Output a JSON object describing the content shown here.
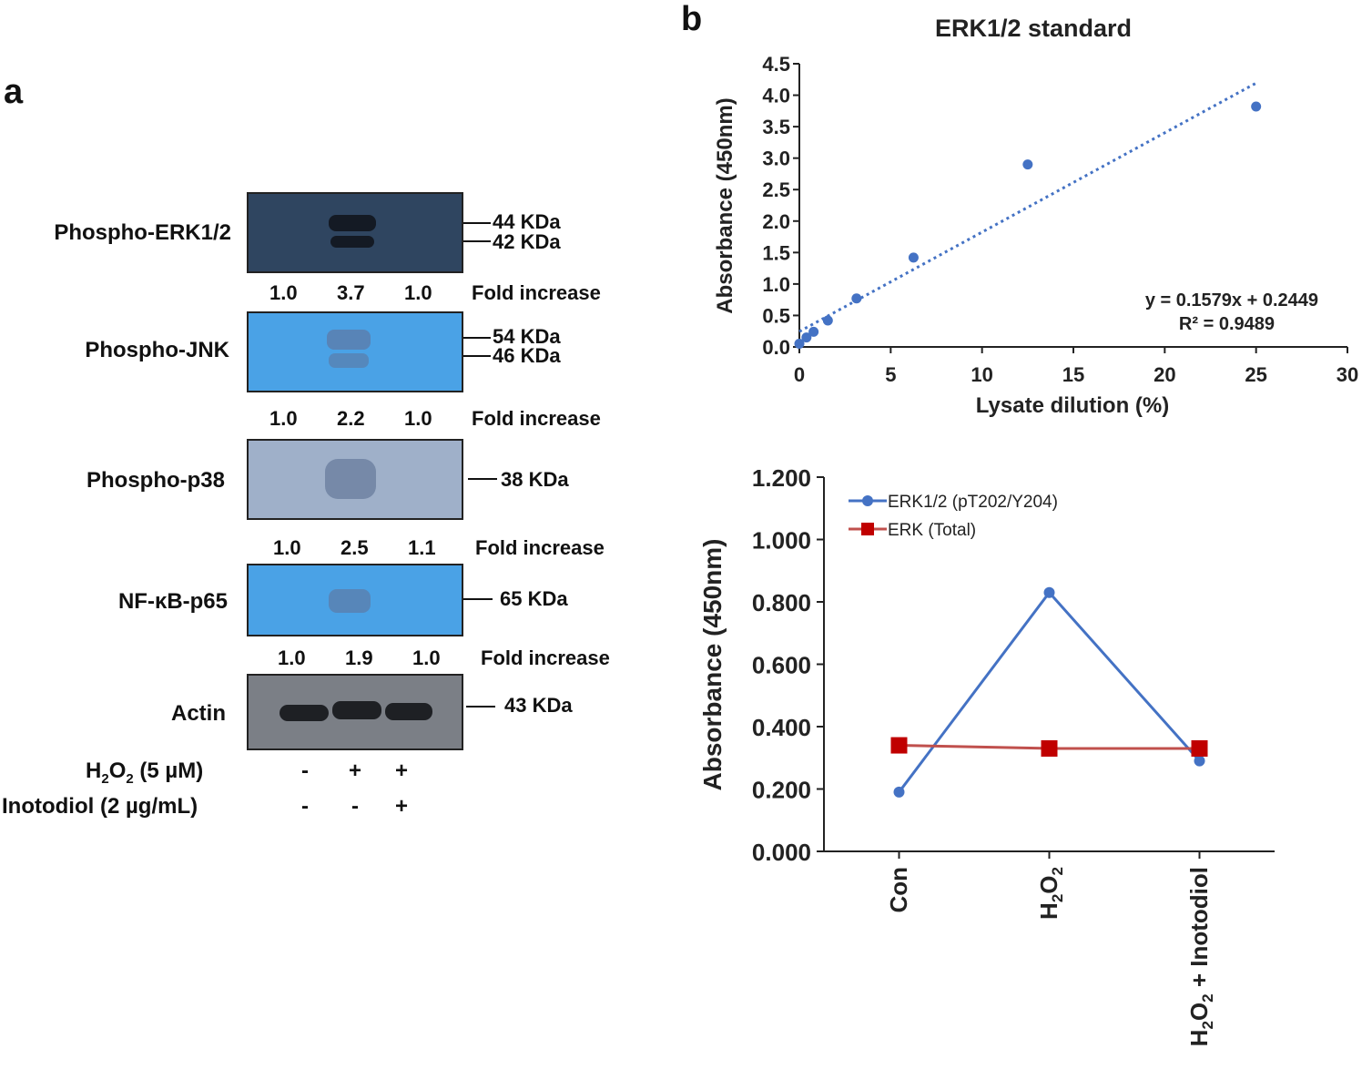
{
  "panel_a": {
    "letter": "a",
    "blots": [
      {
        "label": "Phospho-ERK1/2",
        "markers": [
          "44 KDa",
          "42 KDa"
        ],
        "folds": [
          "1.0",
          "3.7",
          "1.0"
        ],
        "fold_label": "Fold increase"
      },
      {
        "label": "Phospho-JNK",
        "markers": [
          "54 KDa",
          "46 KDa"
        ],
        "folds": [
          "1.0",
          "2.2",
          "1.0"
        ],
        "fold_label": "Fold increase"
      },
      {
        "label": "Phospho-p38",
        "markers": [
          "38 KDa"
        ],
        "folds": [
          "1.0",
          "2.5",
          "1.1"
        ],
        "fold_label": "Fold increase"
      },
      {
        "label": "NF-κB-p65",
        "markers": [
          "65 KDa"
        ],
        "folds": [
          "1.0",
          "1.9",
          "1.0"
        ],
        "fold_label": "Fold increase"
      },
      {
        "label": "Actin",
        "markers": [
          "43 KDa"
        ]
      }
    ],
    "treatments": [
      {
        "label_pre": "H",
        "label_sub": "2",
        "label_mid": "O",
        "label_sub2": "2",
        "label_post": " (5 µM)",
        "signs": [
          "-",
          "+",
          "+"
        ]
      },
      {
        "label": "Inotodiol (2 µg/mL)",
        "signs": [
          "-",
          "-",
          "+"
        ]
      }
    ],
    "colors": {
      "dark_blot": "#2f4560",
      "light_blot": "#4aa2e6",
      "gray_blot": "#9fb0c9",
      "band": "#1a1f2a"
    }
  },
  "panel_b": {
    "letter": "b",
    "chart_data": [
      {
        "type": "scatter",
        "title": "ERK1/2 standard",
        "xlabel": "Lysate dilution (%)",
        "ylabel": "Absorbance (450nm)",
        "xlim": [
          0,
          30
        ],
        "ylim": [
          0,
          4.5
        ],
        "x_ticks": [
          "0",
          "5",
          "10",
          "15",
          "20",
          "25",
          "30"
        ],
        "y_ticks": [
          "0.0",
          "0.5",
          "1.0",
          "1.5",
          "2.0",
          "2.5",
          "3.0",
          "3.5",
          "4.0",
          "4.5"
        ],
        "points": [
          {
            "x": 0,
            "y": 0.05
          },
          {
            "x": 0.39,
            "y": 0.15
          },
          {
            "x": 0.78,
            "y": 0.24
          },
          {
            "x": 1.56,
            "y": 0.42
          },
          {
            "x": 3.13,
            "y": 0.77
          },
          {
            "x": 6.25,
            "y": 1.42
          },
          {
            "x": 12.5,
            "y": 2.9
          },
          {
            "x": 25,
            "y": 3.82
          }
        ],
        "trendline": {
          "slope": 0.1579,
          "intercept": 0.2449,
          "x_range": [
            0,
            25
          ]
        },
        "equation": "y = 0.1579x + 0.2449",
        "r2": "R² = 0.9489",
        "color": "#4472c4"
      },
      {
        "type": "line",
        "xlabel": "",
        "ylabel": "Absorbance (450nm)",
        "ylim": [
          0,
          1.2
        ],
        "y_ticks": [
          "0.000",
          "0.200",
          "0.400",
          "0.600",
          "0.800",
          "1.000",
          "1.200"
        ],
        "categories": [
          "Con",
          "H2O2",
          "H2O2 + Inotodiol"
        ],
        "series": [
          {
            "name": "ERK1/2 (pT202/Y204)",
            "values": [
              0.19,
              0.83,
              0.29
            ],
            "color": "#4472c4",
            "marker": "circle"
          },
          {
            "name": "ERK (Total)",
            "values": [
              0.34,
              0.33,
              0.33
            ],
            "color": "#c00000",
            "marker": "square"
          }
        ],
        "legend": "top-left"
      }
    ]
  }
}
